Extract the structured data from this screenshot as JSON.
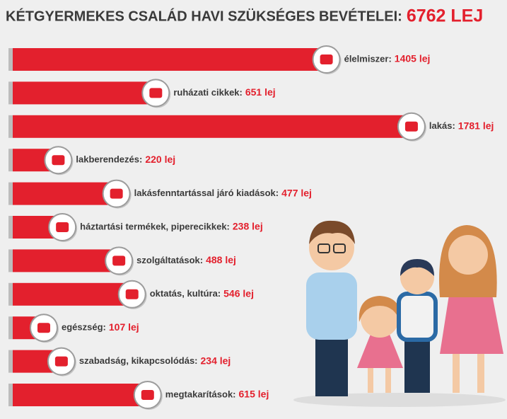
{
  "chart_data": {
    "type": "hbar",
    "title": "KÉTGYERMEKES CSALÁD HAVI SZÜKSÉGES BEVÉTELEI:",
    "title_highlight": "6762 LEJ",
    "categories": [
      "élelmiszer:",
      "ruházati cikkek:",
      "lakás:",
      "lakberendezés:",
      "lakásfenntartással járó kiadások:",
      "háztartási termékek, piperecikkek:",
      "szolgáltatások:",
      "oktatás, kultúra:",
      "egészség:",
      "szabadság, kikapcsolódás:",
      "megtakarítások:"
    ],
    "values": [
      1405,
      651,
      1781,
      220,
      477,
      238,
      488,
      546,
      107,
      234,
      615
    ],
    "value_labels": [
      "1405 lej",
      "651 lej",
      "1781 lej",
      "220 lej",
      "477 lej",
      "238 lej",
      "488 lej",
      "546 lej",
      "107 lej",
      "234 lej",
      "615 lej"
    ],
    "color": "#e3202d",
    "xlim": [
      0,
      1800
    ]
  }
}
